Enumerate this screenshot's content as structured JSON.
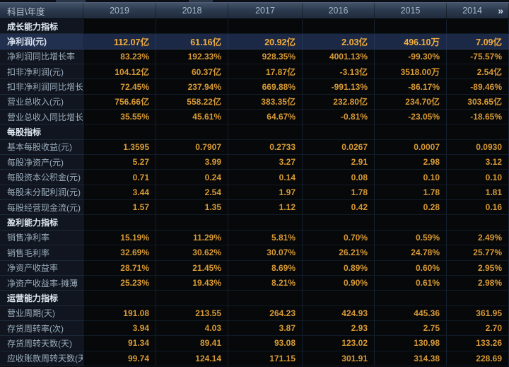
{
  "colors": {
    "value_orange": "#d89a35",
    "highlight_orange": "#f3ae3c",
    "row_highlight_bg": "#1c2946",
    "label_column_bg": "#10151f",
    "header_bg_top": "#445368",
    "header_bg_bottom": "#1f2b3c"
  },
  "header": {
    "label": "科目\\年度",
    "years": [
      "2019",
      "2018",
      "2017",
      "2016",
      "2015",
      "2014"
    ],
    "more_icon": "»"
  },
  "rows": [
    {
      "type": "section",
      "label": "成长能力指标",
      "values": [
        "",
        "",
        "",
        "",
        "",
        ""
      ]
    },
    {
      "type": "data",
      "highlighted": true,
      "label": "净利润(元)",
      "values": [
        "112.07亿",
        "61.16亿",
        "20.92亿",
        "2.03亿",
        "496.10万",
        "7.09亿"
      ]
    },
    {
      "type": "data",
      "label": "净利润同比增长率",
      "values": [
        "83.23%",
        "192.33%",
        "928.35%",
        "4001.13%",
        "-99.30%",
        "-75.57%"
      ]
    },
    {
      "type": "data",
      "label": "扣非净利润(元)",
      "values": [
        "104.12亿",
        "60.37亿",
        "17.87亿",
        "-3.13亿",
        "3518.00万",
        "2.54亿"
      ]
    },
    {
      "type": "data",
      "label": "扣非净利润同比增长率",
      "values": [
        "72.45%",
        "237.94%",
        "669.88%",
        "-991.13%",
        "-86.17%",
        "-89.46%"
      ]
    },
    {
      "type": "data",
      "label": "营业总收入(元)",
      "values": [
        "756.66亿",
        "558.22亿",
        "383.35亿",
        "232.80亿",
        "234.70亿",
        "303.65亿"
      ]
    },
    {
      "type": "data",
      "label": "营业总收入同比增长率",
      "values": [
        "35.55%",
        "45.61%",
        "64.67%",
        "-0.81%",
        "-23.05%",
        "-18.65%"
      ]
    },
    {
      "type": "section",
      "label": "每股指标",
      "values": [
        "",
        "",
        "",
        "",
        "",
        ""
      ]
    },
    {
      "type": "data",
      "label": "基本每股收益(元)",
      "values": [
        "1.3595",
        "0.7907",
        "0.2733",
        "0.0267",
        "0.0007",
        "0.0930"
      ]
    },
    {
      "type": "data",
      "label": "每股净资产(元)",
      "values": [
        "5.27",
        "3.99",
        "3.27",
        "2.91",
        "2.98",
        "3.12"
      ]
    },
    {
      "type": "data",
      "label": "每股资本公积金(元)",
      "values": [
        "0.71",
        "0.24",
        "0.14",
        "0.08",
        "0.10",
        "0.10"
      ]
    },
    {
      "type": "data",
      "label": "每股未分配利润(元)",
      "values": [
        "3.44",
        "2.54",
        "1.97",
        "1.78",
        "1.78",
        "1.81"
      ]
    },
    {
      "type": "data",
      "label": "每股经营现金流(元)",
      "values": [
        "1.57",
        "1.35",
        "1.12",
        "0.42",
        "0.28",
        "0.16"
      ]
    },
    {
      "type": "section",
      "label": "盈利能力指标",
      "values": [
        "",
        "",
        "",
        "",
        "",
        ""
      ]
    },
    {
      "type": "data",
      "label": "销售净利率",
      "values": [
        "15.19%",
        "11.29%",
        "5.81%",
        "0.70%",
        "0.59%",
        "2.49%"
      ]
    },
    {
      "type": "data",
      "label": "销售毛利率",
      "values": [
        "32.69%",
        "30.62%",
        "30.07%",
        "26.21%",
        "24.78%",
        "25.77%"
      ]
    },
    {
      "type": "data",
      "label": "净资产收益率",
      "values": [
        "28.71%",
        "21.45%",
        "8.69%",
        "0.89%",
        "0.60%",
        "2.95%"
      ]
    },
    {
      "type": "data",
      "label": "净资产收益率-摊薄",
      "values": [
        "25.23%",
        "19.43%",
        "8.21%",
        "0.90%",
        "0.61%",
        "2.98%"
      ]
    },
    {
      "type": "section",
      "label": "运营能力指标",
      "values": [
        "",
        "",
        "",
        "",
        "",
        ""
      ]
    },
    {
      "type": "data",
      "label": "营业周期(天)",
      "values": [
        "191.08",
        "213.55",
        "264.23",
        "424.93",
        "445.36",
        "361.95"
      ]
    },
    {
      "type": "data",
      "label": "存货周转率(次)",
      "values": [
        "3.94",
        "4.03",
        "3.87",
        "2.93",
        "2.75",
        "2.70"
      ]
    },
    {
      "type": "data",
      "label": "存货周转天数(天)",
      "values": [
        "91.34",
        "89.41",
        "93.08",
        "123.02",
        "130.98",
        "133.26"
      ]
    },
    {
      "type": "data",
      "label": "应收账款周转天数(天)",
      "values": [
        "99.74",
        "124.14",
        "171.15",
        "301.91",
        "314.38",
        "228.69"
      ]
    }
  ]
}
